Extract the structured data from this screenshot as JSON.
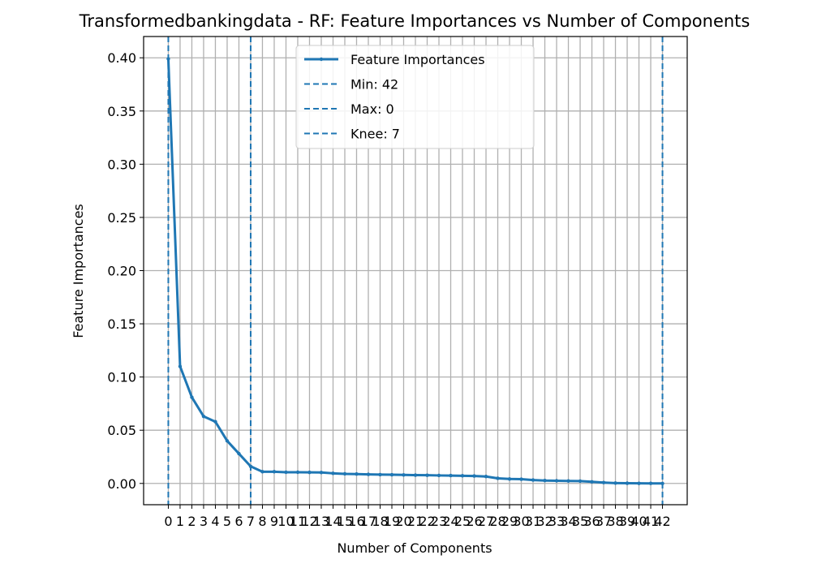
{
  "chart_data": {
    "type": "line",
    "title": "Transformedbankingdata - RF: Feature Importances vs Number of Components",
    "xlabel": "Number of Components",
    "ylabel": "Feature Importances",
    "x": [
      0,
      1,
      2,
      3,
      4,
      5,
      6,
      7,
      8,
      9,
      10,
      11,
      12,
      13,
      14,
      15,
      16,
      17,
      18,
      19,
      20,
      21,
      22,
      23,
      24,
      25,
      26,
      27,
      28,
      29,
      30,
      31,
      32,
      33,
      34,
      35,
      36,
      37,
      38,
      39,
      40,
      41,
      42
    ],
    "xticklabels": [
      "0",
      "1",
      "2",
      "3",
      "4",
      "5",
      "6",
      "7",
      "8",
      "9",
      "10",
      "11",
      "12",
      "13",
      "14",
      "15",
      "16",
      "17",
      "18",
      "19",
      "20",
      "21",
      "22",
      "23",
      "24",
      "25",
      "26",
      "27",
      "28",
      "29",
      "30",
      "31",
      "32",
      "33",
      "34",
      "35",
      "36",
      "37",
      "38",
      "39",
      "40",
      "41",
      "42"
    ],
    "xlim": [
      -2.1,
      44.1
    ],
    "ylim": [
      -0.02,
      0.42
    ],
    "yticks": [
      0.0,
      0.05,
      0.1,
      0.15,
      0.2,
      0.25,
      0.3,
      0.35,
      0.4
    ],
    "yticklabels": [
      "0.00",
      "0.05",
      "0.10",
      "0.15",
      "0.20",
      "0.25",
      "0.30",
      "0.35",
      "0.40"
    ],
    "grid": true,
    "legend_position": "top-center",
    "series": [
      {
        "name": "Feature Importances",
        "color": "#1f77b4",
        "values": [
          0.399,
          0.11,
          0.081,
          0.063,
          0.058,
          0.04,
          0.028,
          0.016,
          0.011,
          0.011,
          0.0105,
          0.0105,
          0.0104,
          0.0103,
          0.0095,
          0.009,
          0.0088,
          0.0085,
          0.0083,
          0.0082,
          0.008,
          0.0078,
          0.0077,
          0.0075,
          0.0074,
          0.0072,
          0.007,
          0.0065,
          0.0048,
          0.0042,
          0.004,
          0.0032,
          0.0027,
          0.0025,
          0.0023,
          0.0022,
          0.0015,
          0.0008,
          0.0003,
          0.0002,
          0.0001,
          5e-05,
          0.0
        ]
      }
    ],
    "vlines": [
      {
        "label": "Min: 42",
        "x": 42,
        "color": "#1f77b4"
      },
      {
        "label": "Max: 0",
        "x": 0,
        "color": "#1f77b4"
      },
      {
        "label": "Knee: 7",
        "x": 7,
        "color": "#1f77b4"
      }
    ]
  }
}
